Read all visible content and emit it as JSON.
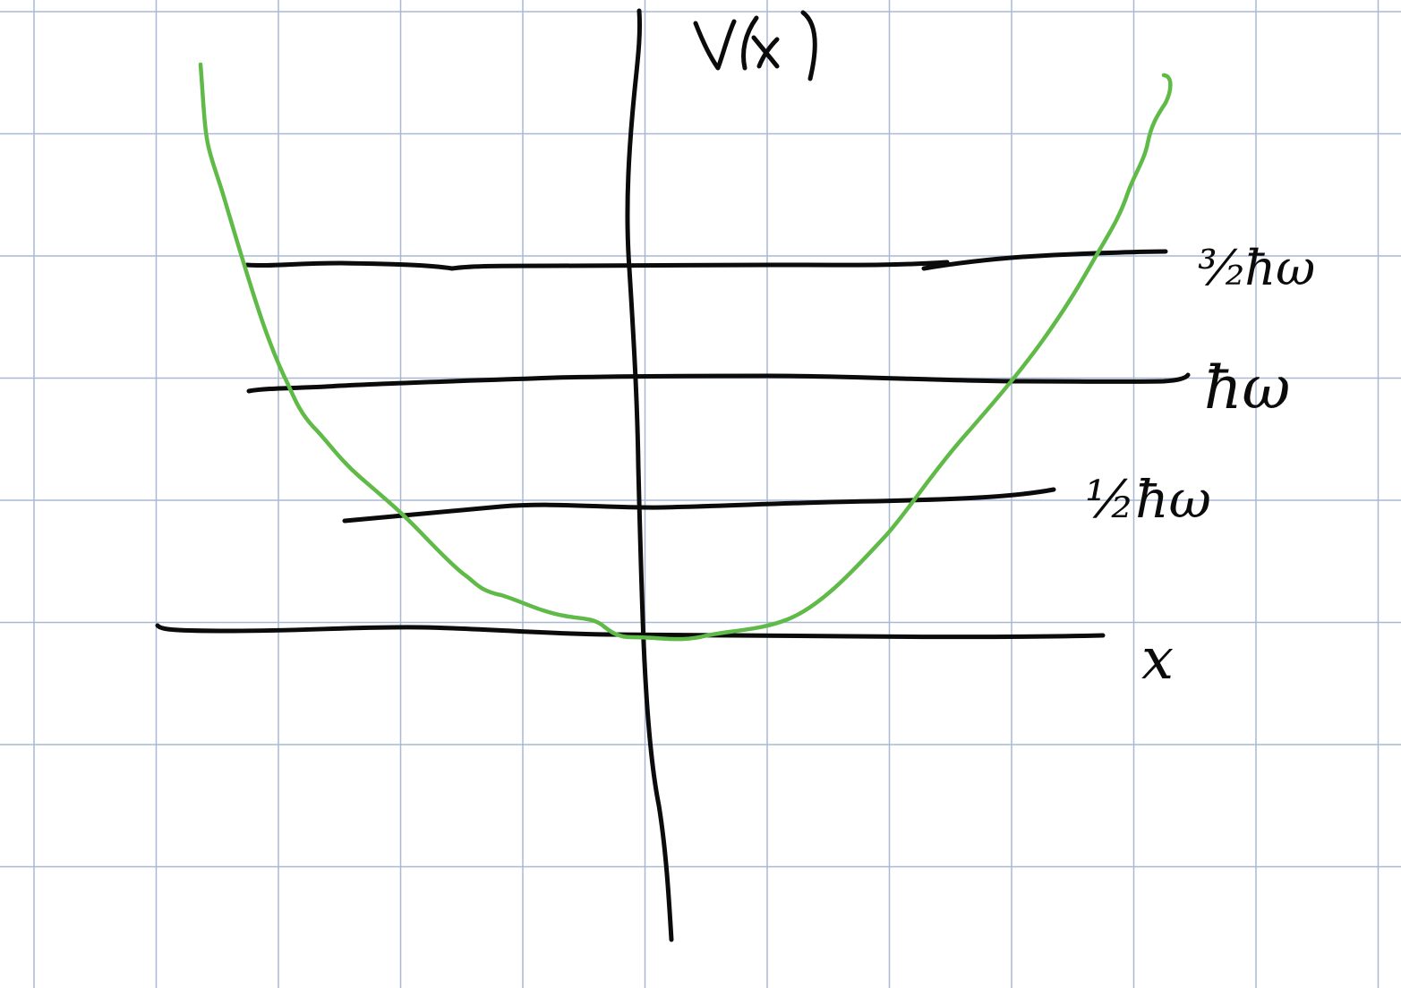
{
  "colors": {
    "paper": "#ffffff",
    "grid": "#a9b9d2",
    "ink": "#0b0b0b",
    "potential_curve": "#5fba47"
  },
  "labels": {
    "vertical_axis": "V(x)",
    "horizontal_axis": "x",
    "level_ground": "½ħω",
    "level_first": "ħω",
    "level_second": "³⁄₂ħω"
  },
  "energy_levels": [
    {
      "name": "level-ground",
      "multiple_of_hbar_omega": 0.5
    },
    {
      "name": "level-first",
      "multiple_of_hbar_omega": 1
    },
    {
      "name": "level-second",
      "multiple_of_hbar_omega": 1.5
    }
  ]
}
